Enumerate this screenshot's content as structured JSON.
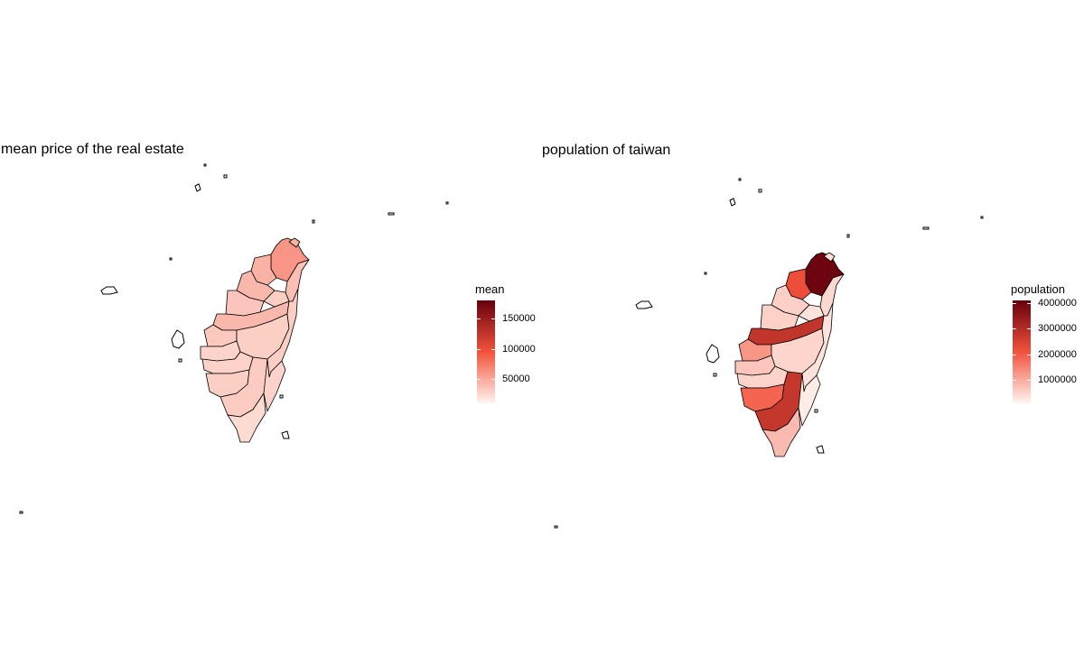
{
  "colors": {
    "scale_low": "#fff5f0",
    "scale_mid": "#f3523b",
    "scale_high": "#67000d",
    "border": "#000000"
  },
  "chart_data": [
    {
      "type": "choropleth",
      "title": "mean price of the real estate",
      "legend": {
        "title": "mean",
        "range": [
          10000,
          180000
        ],
        "ticks": [
          {
            "value": 150000,
            "label": "150000"
          },
          {
            "value": 100000,
            "label": "100000"
          },
          {
            "value": 50000,
            "label": "50000"
          }
        ],
        "placement": "right"
      },
      "regions": [
        {
          "id": "taipei",
          "value": 100000
        },
        {
          "id": "new-taipei",
          "value": 60000
        },
        {
          "id": "keelung",
          "value": 45000
        },
        {
          "id": "taoyuan",
          "value": 45000
        },
        {
          "id": "hsinchu-county",
          "value": 42000
        },
        {
          "id": "miaoli",
          "value": 35000
        },
        {
          "id": "taichung",
          "value": 42000
        },
        {
          "id": "changhua",
          "value": 33000
        },
        {
          "id": "nantou",
          "value": 30000
        },
        {
          "id": "yunlin",
          "value": 27000
        },
        {
          "id": "chiayi-county",
          "value": 28000
        },
        {
          "id": "tainan",
          "value": 30000
        },
        {
          "id": "kaohsiung",
          "value": 32000
        },
        {
          "id": "pingtung",
          "value": 24000
        },
        {
          "id": "yilan",
          "value": 38000
        },
        {
          "id": "hualien",
          "value": 30000
        },
        {
          "id": "taitung",
          "value": 28000
        }
      ]
    },
    {
      "type": "choropleth",
      "title": "population of taiwan",
      "legend": {
        "title": "population",
        "range": [
          100000,
          4100000
        ],
        "ticks": [
          {
            "value": 4000000,
            "label": "4000000"
          },
          {
            "value": 3000000,
            "label": "3000000"
          },
          {
            "value": 2000000,
            "label": "2000000"
          },
          {
            "value": 1000000,
            "label": "1000000"
          }
        ],
        "placement": "right"
      },
      "regions": [
        {
          "id": "taipei",
          "value": 2600000
        },
        {
          "id": "new-taipei",
          "value": 4000000
        },
        {
          "id": "keelung",
          "value": 370000
        },
        {
          "id": "taoyuan",
          "value": 2200000
        },
        {
          "id": "hsinchu-county",
          "value": 560000
        },
        {
          "id": "miaoli",
          "value": 540000
        },
        {
          "id": "taichung",
          "value": 2800000
        },
        {
          "id": "changhua",
          "value": 1270000
        },
        {
          "id": "nantou",
          "value": 490000
        },
        {
          "id": "yunlin",
          "value": 680000
        },
        {
          "id": "chiayi-county",
          "value": 500000
        },
        {
          "id": "tainan",
          "value": 1880000
        },
        {
          "id": "kaohsiung",
          "value": 2770000
        },
        {
          "id": "pingtung",
          "value": 820000
        },
        {
          "id": "yilan",
          "value": 450000
        },
        {
          "id": "hualien",
          "value": 320000
        },
        {
          "id": "taitung",
          "value": 215000
        }
      ]
    }
  ]
}
